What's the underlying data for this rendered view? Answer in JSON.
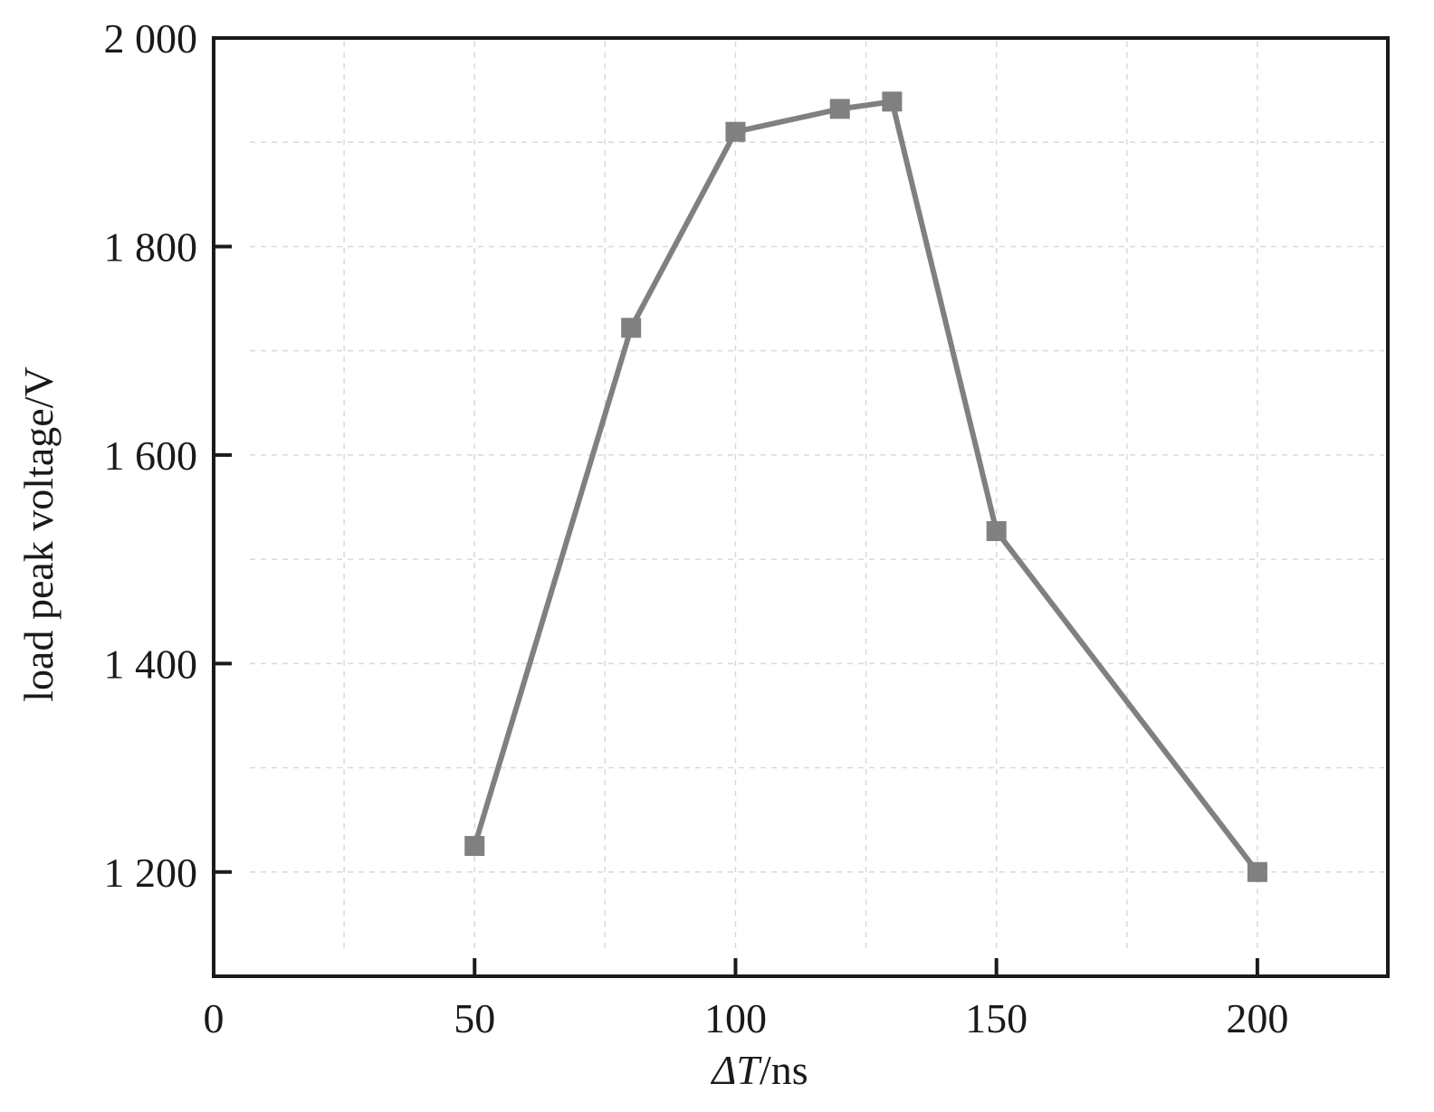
{
  "chart_data": {
    "type": "line",
    "title": "",
    "xlabel": {
      "italic": "ΔT",
      "plain": "/ns"
    },
    "ylabel": "load peak voltage/V",
    "xlim": [
      0,
      225
    ],
    "ylim": [
      1100,
      2000
    ],
    "x_ticks": [
      {
        "value": 0,
        "label": "0"
      },
      {
        "value": 50,
        "label": "50"
      },
      {
        "value": 100,
        "label": "100"
      },
      {
        "value": 150,
        "label": "150"
      },
      {
        "value": 200,
        "label": "200"
      }
    ],
    "y_ticks": [
      {
        "value": 1200,
        "label": "1 200"
      },
      {
        "value": 1400,
        "label": "1 400"
      },
      {
        "value": 1600,
        "label": "1 600"
      },
      {
        "value": 1800,
        "label": "1 800"
      },
      {
        "value": 2000,
        "label": "2 000"
      }
    ],
    "x_grid": [
      25,
      50,
      75,
      100,
      125,
      150,
      175,
      200
    ],
    "y_grid": [
      1200,
      1300,
      1400,
      1500,
      1600,
      1700,
      1800,
      1900
    ],
    "grid": true,
    "series": [
      {
        "marker": "square",
        "color": "#808080",
        "x": [
          50,
          80,
          100,
          120,
          130,
          150,
          200
        ],
        "y": [
          1225,
          1722,
          1910,
          1932,
          1939,
          1527,
          1200
        ]
      }
    ]
  }
}
